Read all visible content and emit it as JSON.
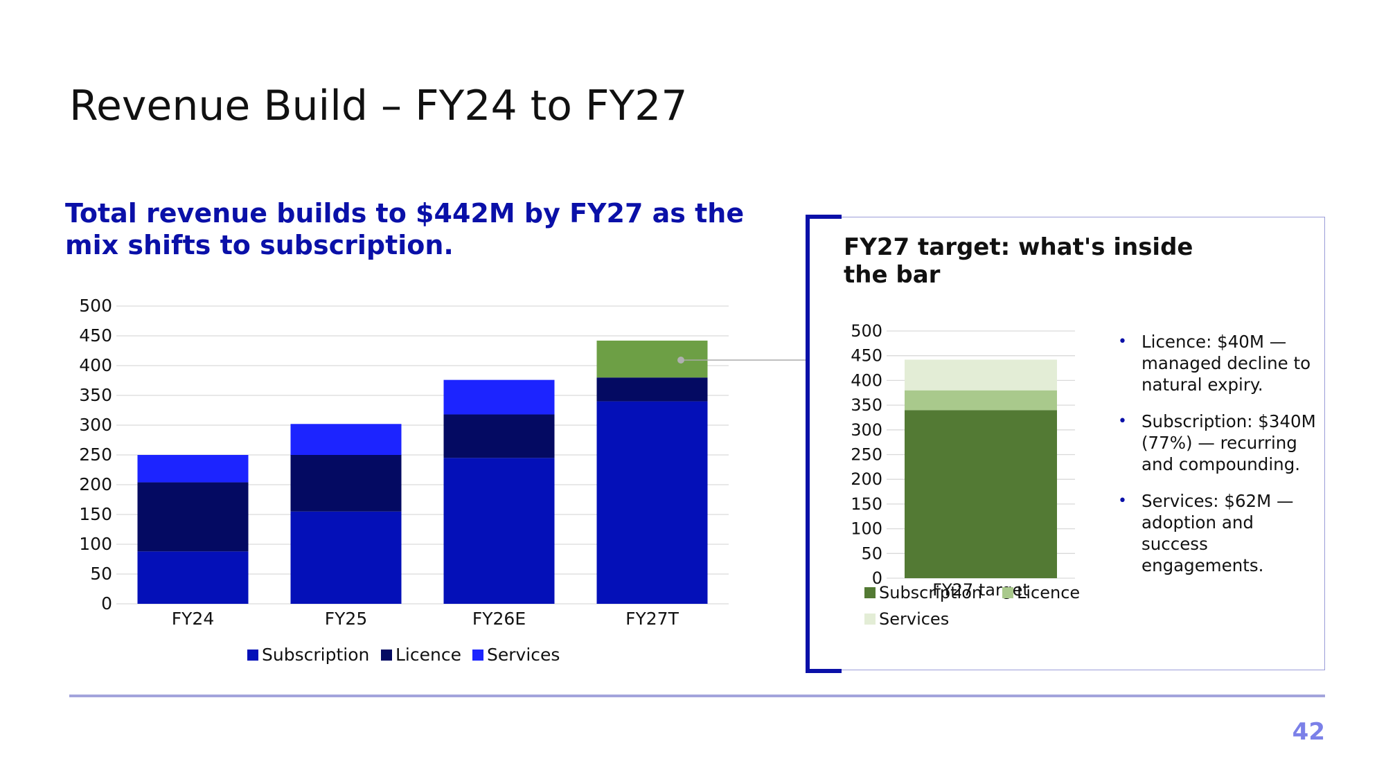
{
  "slide": {
    "title": "Revenue Build – FY24 to FY27",
    "subtitle": "Total revenue builds to $442M by FY27 as the mix shifts to subscription.",
    "page_number": "42"
  },
  "panel": {
    "title": "FY27 target: what's inside the bar",
    "bullets": [
      "Licence: $40M — managed decline to natural expiry.",
      "Subscription: $340M (77%) — recurring and compounding.",
      "Services: $62M — adoption and success engagements."
    ]
  },
  "colors": {
    "subscription": "#0410b8",
    "licence": "#040a62",
    "services": "#1c24ff",
    "fy27_services": "#6d9f45",
    "side_subscription": "#537a34",
    "side_licence": "#a9c98c",
    "side_services": "#e3edd6",
    "accent": "#0a10a8"
  },
  "chart_data": [
    {
      "type": "bar",
      "stacked": true,
      "categories": [
        "FY24",
        "FY25",
        "FY26E",
        "FY27T"
      ],
      "series": [
        {
          "name": "Subscription",
          "values": [
            88,
            155,
            245,
            340
          ]
        },
        {
          "name": "Licence",
          "values": [
            116,
            95,
            73,
            40
          ]
        },
        {
          "name": "Services",
          "values": [
            46,
            52,
            58,
            62
          ]
        }
      ],
      "ylim": [
        0,
        500
      ],
      "yticks": [
        0,
        50,
        100,
        150,
        200,
        250,
        300,
        350,
        400,
        450,
        500
      ],
      "grid": true,
      "legend": "bottom"
    },
    {
      "type": "bar",
      "stacked": true,
      "categories": [
        "FY27 target"
      ],
      "series": [
        {
          "name": "Subscription",
          "values": [
            340
          ]
        },
        {
          "name": "Licence",
          "values": [
            40
          ]
        },
        {
          "name": "Services",
          "values": [
            62
          ]
        }
      ],
      "ylim": [
        0,
        500
      ],
      "yticks": [
        0,
        50,
        100,
        150,
        200,
        250,
        300,
        350,
        400,
        450,
        500
      ],
      "grid": true,
      "legend": "bottom"
    }
  ]
}
